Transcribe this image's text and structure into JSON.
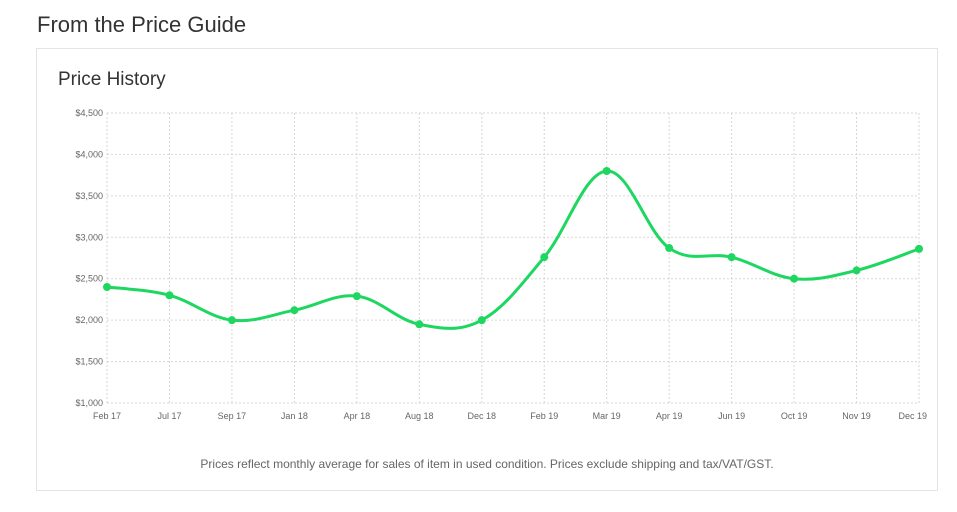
{
  "page": {
    "section_title": "From the Price Guide"
  },
  "card": {
    "title": "Price History",
    "footnote": "Prices reflect monthly average for sales of item in used condition. Prices exclude shipping and tax/VAT/GST."
  },
  "chart_data": {
    "type": "line",
    "title": "Price History",
    "xlabel": "",
    "ylabel": "",
    "categories": [
      "Feb 17",
      "Jul 17",
      "Sep 17",
      "Jan 18",
      "Apr 18",
      "Aug 18",
      "Dec 18",
      "Feb 19",
      "Mar 19",
      "Apr 19",
      "Jun 19",
      "Oct 19",
      "Nov 19",
      "Dec 19"
    ],
    "values": [
      2400,
      2300,
      2000,
      2120,
      2290,
      1950,
      2000,
      2760,
      3800,
      2870,
      2760,
      2500,
      2600,
      2860
    ],
    "ylim": [
      1000,
      4500
    ],
    "yticks": [
      1000,
      1500,
      2000,
      2500,
      3000,
      3500,
      4000,
      4500
    ],
    "ytick_labels": [
      "$1,000",
      "$1,500",
      "$2,000",
      "$2,500",
      "$3,000",
      "$3,500",
      "$4,000",
      "$4,500"
    ],
    "grid": true,
    "legend": "none",
    "line_color": "#1ed760",
    "grid_color": "#d6d6d6"
  }
}
